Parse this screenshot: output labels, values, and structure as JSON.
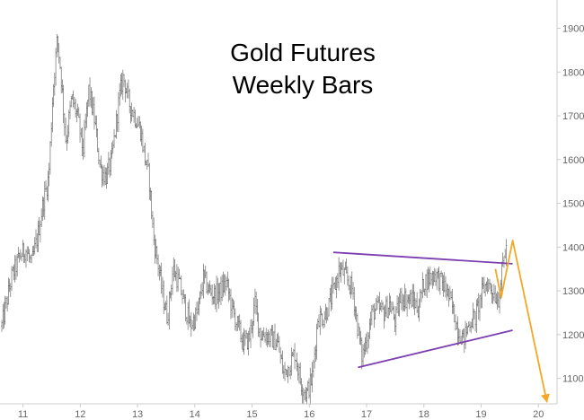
{
  "chart_data": {
    "type": "ohlc",
    "title_lines": [
      "Gold Futures",
      "Weekly Bars"
    ],
    "xlabel": "",
    "ylabel": "",
    "x_ticks": [
      "11",
      "12",
      "13",
      "14",
      "15",
      "16",
      "17",
      "18",
      "19",
      "20"
    ],
    "x_tick_years": [
      2011,
      2012,
      2013,
      2014,
      2015,
      2016,
      2017,
      2018,
      2019,
      2020
    ],
    "y_ticks": [
      1100,
      1200,
      1300,
      1400,
      1500,
      1600,
      1700,
      1800,
      1900
    ],
    "xlim": [
      2010.63,
      2020.2
    ],
    "ylim": [
      1050,
      1940
    ],
    "y_axis_position": "right",
    "grid": false,
    "colors": {
      "bars": "#555555",
      "trendlines": "#7b3fb0",
      "projection": "#f5a623",
      "axis": "#cccccc",
      "ticks": "#666666"
    },
    "series": [
      {
        "type": "ohlc",
        "points": [
          [
            2010.63,
            1220
          ],
          [
            2010.8,
            1330
          ],
          [
            2010.95,
            1380
          ],
          [
            2011.05,
            1395
          ],
          [
            2011.15,
            1360
          ],
          [
            2011.25,
            1420
          ],
          [
            2011.35,
            1500
          ],
          [
            2011.45,
            1560
          ],
          [
            2011.52,
            1750
          ],
          [
            2011.6,
            1880
          ],
          [
            2011.66,
            1800
          ],
          [
            2011.75,
            1640
          ],
          [
            2011.85,
            1740
          ],
          [
            2011.95,
            1700
          ],
          [
            2012.05,
            1620
          ],
          [
            2012.15,
            1760
          ],
          [
            2012.25,
            1690
          ],
          [
            2012.35,
            1580
          ],
          [
            2012.45,
            1560
          ],
          [
            2012.55,
            1600
          ],
          [
            2012.68,
            1740
          ],
          [
            2012.75,
            1790
          ],
          [
            2012.85,
            1730
          ],
          [
            2012.95,
            1700
          ],
          [
            2013.05,
            1670
          ],
          [
            2013.12,
            1610
          ],
          [
            2013.2,
            1560
          ],
          [
            2013.28,
            1420
          ],
          [
            2013.36,
            1360
          ],
          [
            2013.44,
            1290
          ],
          [
            2013.52,
            1240
          ],
          [
            2013.62,
            1350
          ],
          [
            2013.72,
            1320
          ],
          [
            2013.82,
            1270
          ],
          [
            2013.92,
            1220
          ],
          [
            2014.05,
            1250
          ],
          [
            2014.15,
            1330
          ],
          [
            2014.25,
            1300
          ],
          [
            2014.35,
            1290
          ],
          [
            2014.45,
            1300
          ],
          [
            2014.55,
            1320
          ],
          [
            2014.65,
            1260
          ],
          [
            2014.75,
            1220
          ],
          [
            2014.85,
            1180
          ],
          [
            2014.95,
            1190
          ],
          [
            2015.05,
            1270
          ],
          [
            2015.15,
            1200
          ],
          [
            2015.25,
            1200
          ],
          [
            2015.35,
            1190
          ],
          [
            2015.45,
            1180
          ],
          [
            2015.55,
            1110
          ],
          [
            2015.65,
            1130
          ],
          [
            2015.75,
            1160
          ],
          [
            2015.85,
            1090
          ],
          [
            2015.95,
            1065
          ],
          [
            2016.05,
            1100
          ],
          [
            2016.15,
            1240
          ],
          [
            2016.25,
            1240
          ],
          [
            2016.35,
            1270
          ],
          [
            2016.45,
            1310
          ],
          [
            2016.52,
            1350
          ],
          [
            2016.6,
            1340
          ],
          [
            2016.68,
            1320
          ],
          [
            2016.76,
            1300
          ],
          [
            2016.84,
            1220
          ],
          [
            2016.92,
            1150
          ],
          [
            2017.0,
            1190
          ],
          [
            2017.1,
            1250
          ],
          [
            2017.2,
            1260
          ],
          [
            2017.3,
            1250
          ],
          [
            2017.4,
            1270
          ],
          [
            2017.5,
            1230
          ],
          [
            2017.6,
            1290
          ],
          [
            2017.7,
            1280
          ],
          [
            2017.8,
            1280
          ],
          [
            2017.9,
            1260
          ],
          [
            2018.0,
            1320
          ],
          [
            2018.1,
            1330
          ],
          [
            2018.2,
            1340
          ],
          [
            2018.3,
            1320
          ],
          [
            2018.4,
            1300
          ],
          [
            2018.5,
            1260
          ],
          [
            2018.6,
            1210
          ],
          [
            2018.7,
            1190
          ],
          [
            2018.8,
            1230
          ],
          [
            2018.9,
            1240
          ],
          [
            2019.0,
            1290
          ],
          [
            2019.1,
            1320
          ],
          [
            2019.2,
            1300
          ],
          [
            2019.3,
            1280
          ],
          [
            2019.4,
            1380
          ],
          [
            2019.45,
            1400
          ]
        ]
      }
    ],
    "annotations": {
      "trendlines": [
        {
          "from": [
            2016.42,
            1388
          ],
          "to": [
            2019.55,
            1362
          ]
        },
        {
          "from": [
            2016.85,
            1125
          ],
          "to": [
            2019.55,
            1210
          ]
        }
      ],
      "projection": [
        [
          2019.25,
          1350
        ],
        [
          2019.35,
          1285
        ],
        [
          2019.55,
          1415
        ],
        [
          2020.15,
          1045
        ]
      ]
    }
  }
}
